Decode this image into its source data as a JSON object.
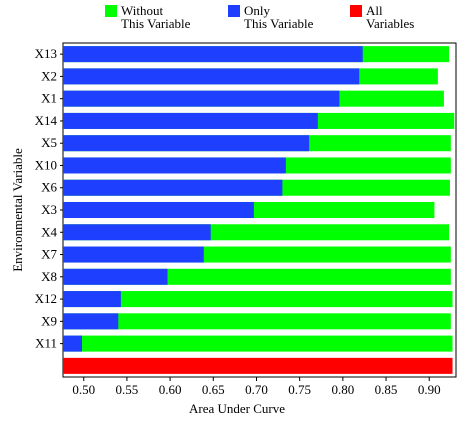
{
  "chart_data": {
    "type": "jackknife_bar",
    "x_label": "Area Under Curve",
    "y_label": "Environmental Variable",
    "categories": [
      "X13",
      "X2",
      "X1",
      "X14",
      "X5",
      "X10",
      "X6",
      "X3",
      "X4",
      "X7",
      "X8",
      "X12",
      "X9",
      "X11",
      null
    ],
    "series": [
      {
        "name": "Without\nThis Variable",
        "color": "#00ff00",
        "values": [
          0.923,
          0.91,
          0.917,
          0.929,
          0.925,
          0.925,
          0.924,
          0.906,
          0.923,
          0.925,
          0.925,
          0.927,
          0.925,
          0.927,
          null
        ]
      },
      {
        "name": "Only\nThis Variable",
        "color": "#1f3fff",
        "values": [
          0.823,
          0.819,
          0.796,
          0.771,
          0.761,
          0.734,
          0.73,
          0.697,
          0.647,
          0.639,
          0.597,
          0.543,
          0.54,
          0.498,
          null
        ]
      },
      {
        "name": "All\nVariables",
        "color": "#ff0000",
        "values": [
          null,
          null,
          null,
          null,
          null,
          null,
          null,
          null,
          null,
          null,
          null,
          null,
          null,
          null,
          0.927
        ]
      }
    ],
    "xlim": [
      0.476,
      0.931
    ],
    "xticks": [
      {
        "value": 0.5,
        "label": "0.50"
      },
      0.55,
      {
        "value": 0.6,
        "label": "0.60"
      },
      0.65,
      {
        "value": 0.7,
        "label": "0.70"
      },
      0.75,
      {
        "value": 0.8,
        "label": "0.80"
      },
      0.85,
      {
        "value": 0.9,
        "label": "0.90"
      }
    ]
  }
}
